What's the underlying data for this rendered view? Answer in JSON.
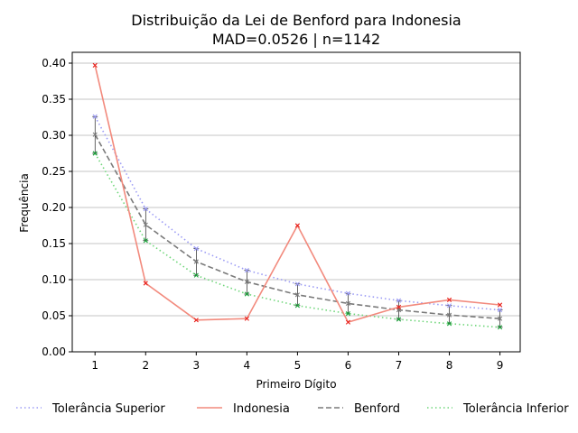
{
  "chart_data": {
    "type": "line",
    "title": "Distribuição da Lei de Benford para Indonesia",
    "subtitle": "MAD=0.0526 | n=1142",
    "xlabel": "Primeiro Dígito",
    "ylabel": "Frequência",
    "x": [
      1,
      2,
      3,
      4,
      5,
      6,
      7,
      8,
      9
    ],
    "xlim": [
      0.55,
      9.4
    ],
    "ylim": [
      0.0,
      0.415
    ],
    "yticks": [
      0.0,
      0.05,
      0.1,
      0.15,
      0.2,
      0.25,
      0.3,
      0.35,
      0.4
    ],
    "ytick_labels": [
      "0.00",
      "0.05",
      "0.10",
      "0.15",
      "0.20",
      "0.25",
      "0.30",
      "0.35",
      "0.40"
    ],
    "xtick_labels": [
      "1",
      "2",
      "3",
      "4",
      "5",
      "6",
      "7",
      "8",
      "9"
    ],
    "grid": "horizontal",
    "legend_position": "bottom",
    "series": [
      {
        "name": "Tolerância Superior",
        "color": "#9b9bf5",
        "style": "dotted",
        "marker": "x",
        "values": [
          0.326,
          0.198,
          0.143,
          0.113,
          0.094,
          0.081,
          0.071,
          0.064,
          0.058
        ]
      },
      {
        "name": "Indonesia",
        "color": "#f28a7d",
        "style": "solid",
        "marker": "x",
        "marker_color": "#e8211c",
        "values": [
          0.397,
          0.095,
          0.044,
          0.046,
          0.175,
          0.041,
          0.062,
          0.072,
          0.065
        ]
      },
      {
        "name": "Benford",
        "color": "#7a7a7a",
        "style": "dashed",
        "marker": "x",
        "values": [
          0.301,
          0.176,
          0.125,
          0.097,
          0.079,
          0.067,
          0.058,
          0.051,
          0.046
        ]
      },
      {
        "name": "Tolerância Inferior",
        "color": "#6fd67a",
        "style": "dotted",
        "marker": "x",
        "marker_color": "#1aa33a",
        "values": [
          0.275,
          0.154,
          0.106,
          0.08,
          0.064,
          0.053,
          0.045,
          0.039,
          0.034
        ]
      }
    ]
  }
}
